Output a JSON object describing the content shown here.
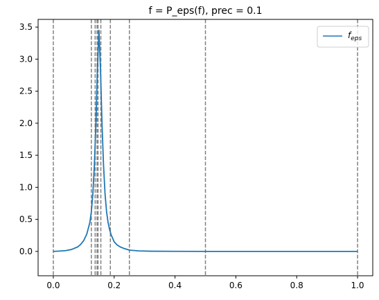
{
  "chart_data": {
    "type": "line",
    "title": "f = P_eps(f), prec = 0.1",
    "xlabel": "",
    "ylabel": "",
    "xlim": [
      -0.05,
      1.05
    ],
    "ylim": [
      -0.38,
      3.62
    ],
    "grid": false,
    "legend_position": "top-right",
    "x_ticks": [
      0.0,
      0.2,
      0.4,
      0.6,
      0.8,
      1.0
    ],
    "x_tick_labels": [
      "0.0",
      "0.2",
      "0.4",
      "0.6",
      "0.8",
      "1.0"
    ],
    "y_ticks": [
      0.0,
      0.5,
      1.0,
      1.5,
      2.0,
      2.5,
      3.0,
      3.5
    ],
    "y_tick_labels": [
      "0.0",
      "0.5",
      "1.0",
      "1.5",
      "2.0",
      "2.5",
      "3.0",
      "3.5"
    ],
    "series": [
      {
        "name": "f_eps",
        "legend_base": "f",
        "legend_sub": "eps",
        "color": "#1f77b4",
        "x": [
          0.0,
          0.02,
          0.04,
          0.06,
          0.08,
          0.09,
          0.1,
          0.11,
          0.12,
          0.125,
          0.13,
          0.135,
          0.14,
          0.145,
          0.15,
          0.155,
          0.16,
          0.165,
          0.17,
          0.175,
          0.18,
          0.185,
          0.19,
          0.2,
          0.21,
          0.22,
          0.23,
          0.25,
          0.28,
          0.32,
          0.4,
          0.5,
          0.6,
          0.7,
          0.8,
          0.9,
          1.0
        ],
        "y": [
          0.0,
          0.005,
          0.012,
          0.03,
          0.07,
          0.11,
          0.17,
          0.27,
          0.45,
          0.62,
          0.9,
          1.35,
          2.0,
          2.85,
          3.45,
          2.85,
          2.0,
          1.35,
          0.9,
          0.62,
          0.45,
          0.34,
          0.26,
          0.15,
          0.1,
          0.07,
          0.05,
          0.02,
          0.008,
          0.003,
          0.001,
          0.0,
          0.0,
          0.0,
          0.0,
          0.0,
          0.0
        ]
      }
    ],
    "vlines": {
      "x": [
        0.0,
        0.125,
        0.1375,
        0.1438,
        0.1469,
        0.1562,
        0.1875,
        0.25,
        0.5,
        1.0
      ],
      "color": "#808080",
      "style": "dashed"
    }
  }
}
